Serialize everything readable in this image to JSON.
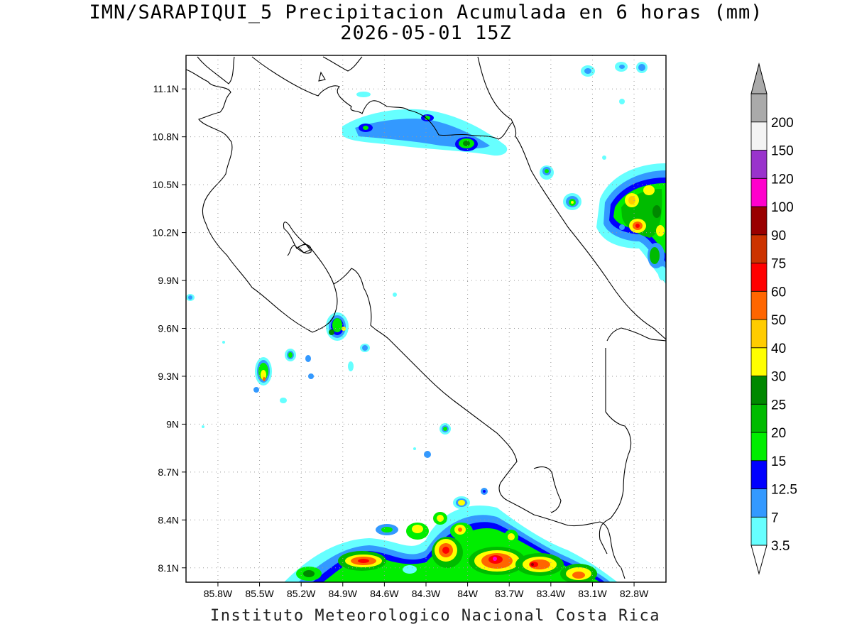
{
  "title": {
    "line1": "IMN/SARAPIQUI_5 Precipitacion Acumulada en 6 horas (mm)",
    "line2": "2026-05-01 15Z"
  },
  "footer": "Instituto Meteorologico Nacional Costa Rica",
  "map": {
    "lon_range": [
      -86.03,
      -82.57
    ],
    "lat_range": [
      8.01,
      11.31
    ],
    "lon_ticks": [
      {
        "value": -85.8,
        "label": "85.8W"
      },
      {
        "value": -85.5,
        "label": "85.5W"
      },
      {
        "value": -85.2,
        "label": "85.2W"
      },
      {
        "value": -84.9,
        "label": "84.9W"
      },
      {
        "value": -84.6,
        "label": "84.6W"
      },
      {
        "value": -84.3,
        "label": "84.3W"
      },
      {
        "value": -84.0,
        "label": "84W"
      },
      {
        "value": -83.7,
        "label": "83.7W"
      },
      {
        "value": -83.4,
        "label": "83.4W"
      },
      {
        "value": -83.1,
        "label": "83.1W"
      },
      {
        "value": -82.8,
        "label": "82.8W"
      }
    ],
    "lat_ticks": [
      {
        "value": 11.1,
        "label": "11.1N"
      },
      {
        "value": 10.8,
        "label": "10.8N"
      },
      {
        "value": 10.5,
        "label": "10.5N"
      },
      {
        "value": 10.2,
        "label": "10.2N"
      },
      {
        "value": 9.9,
        "label": "9.9N"
      },
      {
        "value": 9.6,
        "label": "9.6N"
      },
      {
        "value": 9.3,
        "label": "9.3N"
      },
      {
        "value": 9.0,
        "label": "9N"
      },
      {
        "value": 8.7,
        "label": "8.7N"
      },
      {
        "value": 8.4,
        "label": "8.4N"
      },
      {
        "value": 8.1,
        "label": "8.1N"
      }
    ],
    "grid": true
  },
  "legend": {
    "levels": [
      {
        "label": "3.5",
        "color": "#66ffff"
      },
      {
        "label": "7",
        "color": "#3399ff"
      },
      {
        "label": "12.5",
        "color": "#0000ff"
      },
      {
        "label": "15",
        "color": "#00ee00"
      },
      {
        "label": "20",
        "color": "#00bb00"
      },
      {
        "label": "25",
        "color": "#008800"
      },
      {
        "label": "30",
        "color": "#ffff00"
      },
      {
        "label": "40",
        "color": "#ffcc00"
      },
      {
        "label": "50",
        "color": "#ff6600"
      },
      {
        "label": "60",
        "color": "#ff0000"
      },
      {
        "label": "75",
        "color": "#cc3300"
      },
      {
        "label": "90",
        "color": "#990000"
      },
      {
        "label": "100",
        "color": "#ff00cc"
      },
      {
        "label": "120",
        "color": "#9933cc"
      },
      {
        "label": "150",
        "color": "#f4f4f4"
      },
      {
        "label": "200",
        "color": "#aaaaaa"
      }
    ]
  }
}
